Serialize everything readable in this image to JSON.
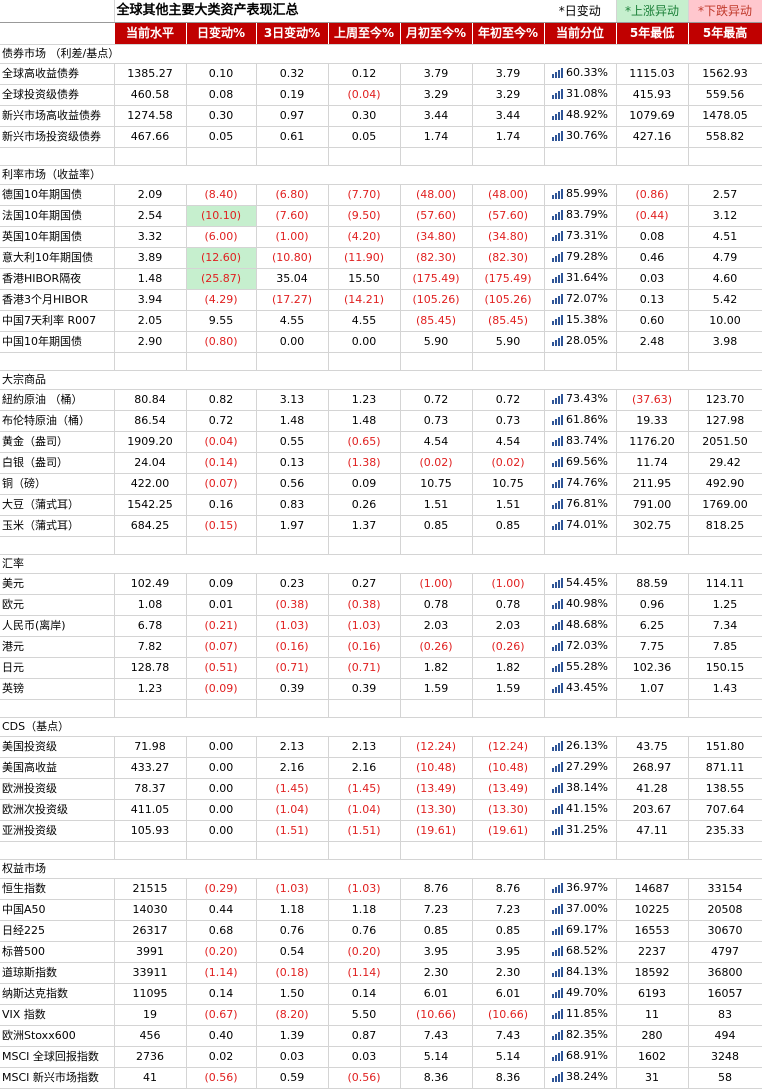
{
  "title": "全球其他主要大类资产表现汇总",
  "legend": {
    "daily": "*日变动",
    "up": "*上涨异动",
    "down": "*下跌异动"
  },
  "columns": [
    "当前水平",
    "日变动%",
    "3日变动%",
    "上周至今%",
    "月初至今%",
    "年初至今%",
    "当前分位",
    "5年最低",
    "5年最高"
  ],
  "sections": [
    {
      "name": "债券市场 （利差/基点）",
      "rows": [
        {
          "name": "全球高收益债券",
          "vals": [
            "1385.27",
            "0.10",
            "0.32",
            "0.12",
            "3.79",
            "3.79",
            "60.33%",
            "1115.03",
            "1562.93"
          ]
        },
        {
          "name": "全球投资级债券",
          "vals": [
            "460.58",
            "0.08",
            "0.19",
            "(0.04)",
            "3.29",
            "3.29",
            "31.08%",
            "415.93",
            "559.56"
          ]
        },
        {
          "name": "新兴市场高收益债券",
          "vals": [
            "1274.58",
            "0.30",
            "0.97",
            "0.30",
            "3.44",
            "3.44",
            "48.92%",
            "1079.69",
            "1478.05"
          ]
        },
        {
          "name": "新兴市场投资级债券",
          "vals": [
            "467.66",
            "0.05",
            "0.61",
            "0.05",
            "1.74",
            "1.74",
            "30.76%",
            "427.16",
            "558.82"
          ]
        }
      ]
    },
    {
      "name": "利率市场（收益率）",
      "rows": [
        {
          "name": "德国10年期国债",
          "vals": [
            "2.09",
            "(8.40)",
            "(6.80)",
            "(7.70)",
            "(48.00)",
            "(48.00)",
            "85.99%",
            "(0.86)",
            "2.57"
          ]
        },
        {
          "name": "法国10年期国债",
          "vals": [
            "2.54",
            "(10.10)",
            "(7.60)",
            "(9.50)",
            "(57.60)",
            "(57.60)",
            "83.79%",
            "(0.44)",
            "3.12"
          ],
          "hl": 1
        },
        {
          "name": "英国10年期国债",
          "vals": [
            "3.32",
            "(6.00)",
            "(1.00)",
            "(4.20)",
            "(34.80)",
            "(34.80)",
            "73.31%",
            "0.08",
            "4.51"
          ]
        },
        {
          "name": "意大利10年期国债",
          "vals": [
            "3.89",
            "(12.60)",
            "(10.80)",
            "(11.90)",
            "(82.30)",
            "(82.30)",
            "79.28%",
            "0.46",
            "4.79"
          ],
          "hl": 1
        },
        {
          "name": "香港HIBOR隔夜",
          "vals": [
            "1.48",
            "(25.87)",
            "35.04",
            "15.50",
            "(175.49)",
            "(175.49)",
            "31.64%",
            "0.03",
            "4.60"
          ],
          "hl": 1
        },
        {
          "name": "香港3个月HIBOR",
          "vals": [
            "3.94",
            "(4.29)",
            "(17.27)",
            "(14.21)",
            "(105.26)",
            "(105.26)",
            "72.07%",
            "0.13",
            "5.42"
          ]
        },
        {
          "name": "中国7天利率 R007",
          "vals": [
            "2.05",
            "9.55",
            "4.55",
            "4.55",
            "(85.45)",
            "(85.45)",
            "15.38%",
            "0.60",
            "10.00"
          ]
        },
        {
          "name": "中国10年期国债",
          "vals": [
            "2.90",
            "(0.80)",
            "0.00",
            "0.00",
            "5.90",
            "5.90",
            "28.05%",
            "2.48",
            "3.98"
          ]
        }
      ]
    },
    {
      "name": "大宗商品",
      "rows": [
        {
          "name": "紐約原油 （桶）",
          "vals": [
            "80.84",
            "0.82",
            "3.13",
            "1.23",
            "0.72",
            "0.72",
            "73.43%",
            "(37.63)",
            "123.70"
          ]
        },
        {
          "name": "布伦特原油（桶）",
          "vals": [
            "86.54",
            "0.72",
            "1.48",
            "1.48",
            "0.73",
            "0.73",
            "61.86%",
            "19.33",
            "127.98"
          ]
        },
        {
          "name": "黄金（盎司）",
          "vals": [
            "1909.20",
            "(0.04)",
            "0.55",
            "(0.65)",
            "4.54",
            "4.54",
            "83.74%",
            "1176.20",
            "2051.50"
          ]
        },
        {
          "name": "白银（盎司）",
          "vals": [
            "24.04",
            "(0.14)",
            "0.13",
            "(1.38)",
            "(0.02)",
            "(0.02)",
            "69.56%",
            "11.74",
            "29.42"
          ]
        },
        {
          "name": "铜（磅）",
          "vals": [
            "422.00",
            "(0.07)",
            "0.56",
            "0.09",
            "10.75",
            "10.75",
            "74.76%",
            "211.95",
            "492.90"
          ]
        },
        {
          "name": "大豆（蒲式耳）",
          "vals": [
            "1542.25",
            "0.16",
            "0.83",
            "0.26",
            "1.51",
            "1.51",
            "76.81%",
            "791.00",
            "1769.00"
          ]
        },
        {
          "name": "玉米（蒲式耳）",
          "vals": [
            "684.25",
            "(0.15)",
            "1.97",
            "1.37",
            "0.85",
            "0.85",
            "74.01%",
            "302.75",
            "818.25"
          ]
        }
      ]
    },
    {
      "name": "汇率",
      "rows": [
        {
          "name": "美元",
          "vals": [
            "102.49",
            "0.09",
            "0.23",
            "0.27",
            "(1.00)",
            "(1.00)",
            "54.45%",
            "88.59",
            "114.11"
          ]
        },
        {
          "name": "欧元",
          "vals": [
            "1.08",
            "0.01",
            "(0.38)",
            "(0.38)",
            "0.78",
            "0.78",
            "40.98%",
            "0.96",
            "1.25"
          ]
        },
        {
          "name": "人民币(离岸)",
          "vals": [
            "6.78",
            "(0.21)",
            "(1.03)",
            "(1.03)",
            "2.03",
            "2.03",
            "48.68%",
            "6.25",
            "7.34"
          ]
        },
        {
          "name": "港元",
          "vals": [
            "7.82",
            "(0.07)",
            "(0.16)",
            "(0.16)",
            "(0.26)",
            "(0.26)",
            "72.03%",
            "7.75",
            "7.85"
          ]
        },
        {
          "name": "日元",
          "vals": [
            "128.78",
            "(0.51)",
            "(0.71)",
            "(0.71)",
            "1.82",
            "1.82",
            "55.28%",
            "102.36",
            "150.15"
          ]
        },
        {
          "name": "英镑",
          "vals": [
            "1.23",
            "(0.09)",
            "0.39",
            "0.39",
            "1.59",
            "1.59",
            "43.45%",
            "1.07",
            "1.43"
          ]
        }
      ]
    },
    {
      "name": "CDS（基点）",
      "rows": [
        {
          "name": "美国投资级",
          "vals": [
            "71.98",
            "0.00",
            "2.13",
            "2.13",
            "(12.24)",
            "(12.24)",
            "26.13%",
            "43.75",
            "151.80"
          ]
        },
        {
          "name": "美国高收益",
          "vals": [
            "433.27",
            "0.00",
            "2.16",
            "2.16",
            "(10.48)",
            "(10.48)",
            "27.29%",
            "268.97",
            "871.11"
          ]
        },
        {
          "name": "欧洲投资级",
          "vals": [
            "78.37",
            "0.00",
            "(1.45)",
            "(1.45)",
            "(13.49)",
            "(13.49)",
            "38.14%",
            "41.28",
            "138.55"
          ]
        },
        {
          "name": "欧洲次投资级",
          "vals": [
            "411.05",
            "0.00",
            "(1.04)",
            "(1.04)",
            "(13.30)",
            "(13.30)",
            "41.15%",
            "203.67",
            "707.64"
          ]
        },
        {
          "name": "亚洲投资级",
          "vals": [
            "105.93",
            "0.00",
            "(1.51)",
            "(1.51)",
            "(19.61)",
            "(19.61)",
            "31.25%",
            "47.11",
            "235.33"
          ]
        }
      ]
    },
    {
      "name": "权益市场",
      "rows": [
        {
          "name": "恒生指数",
          "vals": [
            "21515",
            "(0.29)",
            "(1.03)",
            "(1.03)",
            "8.76",
            "8.76",
            "36.97%",
            "14687",
            "33154"
          ]
        },
        {
          "name": "中国A50",
          "vals": [
            "14030",
            "0.44",
            "1.18",
            "1.18",
            "7.23",
            "7.23",
            "37.00%",
            "10225",
            "20508"
          ]
        },
        {
          "name": "日经225",
          "vals": [
            "26317",
            "0.68",
            "0.76",
            "0.76",
            "0.85",
            "0.85",
            "69.17%",
            "16553",
            "30670"
          ]
        },
        {
          "name": "标普500",
          "vals": [
            "3991",
            "(0.20)",
            "0.54",
            "(0.20)",
            "3.95",
            "3.95",
            "68.52%",
            "2237",
            "4797"
          ]
        },
        {
          "name": "道琼斯指数",
          "vals": [
            "33911",
            "(1.14)",
            "(0.18)",
            "(1.14)",
            "2.30",
            "2.30",
            "84.13%",
            "18592",
            "36800"
          ]
        },
        {
          "name": "纳斯达克指数",
          "vals": [
            "11095",
            "0.14",
            "1.50",
            "0.14",
            "6.01",
            "6.01",
            "49.70%",
            "6193",
            "16057"
          ]
        },
        {
          "name": "VIX 指数",
          "vals": [
            "19",
            "(0.67)",
            "(8.20)",
            "5.50",
            "(10.66)",
            "(10.66)",
            "11.85%",
            "11",
            "83"
          ]
        },
        {
          "name": "欧洲Stoxx600",
          "vals": [
            "456",
            "0.40",
            "1.39",
            "0.87",
            "7.43",
            "7.43",
            "82.35%",
            "280",
            "494"
          ]
        },
        {
          "name": "MSCI 全球回报指数",
          "vals": [
            "2736",
            "0.02",
            "0.03",
            "0.03",
            "5.14",
            "5.14",
            "68.91%",
            "1602",
            "3248"
          ]
        },
        {
          "name": "MSCI 新兴市场指数",
          "vals": [
            "41",
            "(0.56)",
            "0.59",
            "(0.56)",
            "8.36",
            "8.36",
            "38.24%",
            "31",
            "58"
          ]
        }
      ]
    }
  ]
}
